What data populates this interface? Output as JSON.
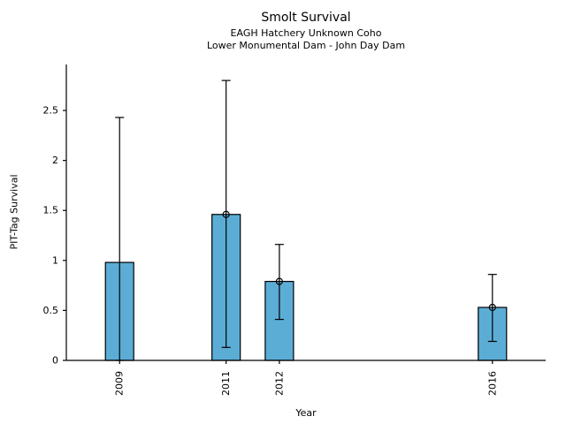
{
  "chart_data": {
    "type": "bar",
    "title": "Smolt Survival",
    "subtitle": [
      "EAGH Hatchery Unknown Coho",
      "Lower Monumental Dam - John Day Dam"
    ],
    "xlabel": "Year",
    "ylabel": "PIT-Tag Survival",
    "categories": [
      2009,
      2011,
      2012,
      2016
    ],
    "xtick_labels": [
      "2009",
      "2011",
      "2012",
      "2016"
    ],
    "values": [
      0.98,
      1.46,
      0.79,
      0.53
    ],
    "error_low": [
      0.0,
      0.13,
      0.41,
      0.19
    ],
    "error_high": [
      2.43,
      2.8,
      1.16,
      0.86
    ],
    "point_marker": [
      false,
      true,
      true,
      true
    ],
    "bar_color": "#5badd6",
    "bar_edge_color": "#000000",
    "error_color": "#000000",
    "xlim": [
      2008,
      2017
    ],
    "ylim": [
      0,
      2.96
    ],
    "yticks": [
      0,
      0.5,
      1,
      1.5,
      2,
      2.5
    ],
    "ytick_labels": [
      "0",
      "0.5",
      "1",
      "1.5",
      "2",
      "2.5"
    ],
    "grid": false,
    "legend": null
  }
}
